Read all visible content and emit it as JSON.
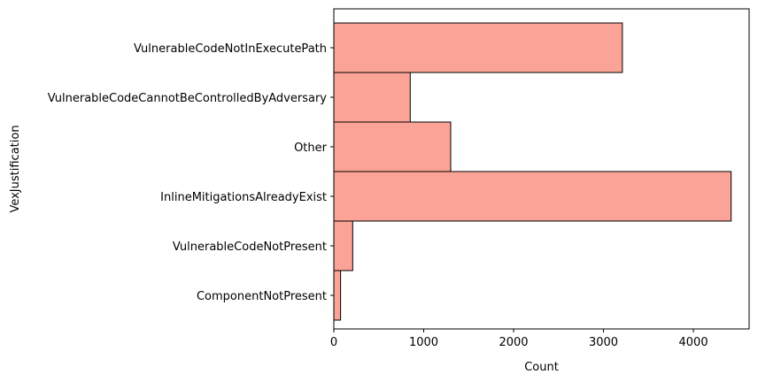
{
  "chart_data": {
    "type": "bar",
    "orientation": "horizontal",
    "categories": [
      "VulnerableCodeNotInExecutePath",
      "VulnerableCodeCannotBeControlledByAdversary",
      "Other",
      "InlineMitigationsAlreadyExist",
      "VulnerableCodeNotPresent",
      "ComponentNotPresent"
    ],
    "values": [
      3210,
      850,
      1300,
      4420,
      210,
      75
    ],
    "xlabel": "Count",
    "ylabel": "VexJustification",
    "xlim": [
      0,
      4620
    ],
    "xticks": [
      0,
      1000,
      2000,
      3000,
      4000
    ],
    "grid": false,
    "legend": "none",
    "colors": {
      "bar_fill": "#fba396",
      "bar_edge": "#000000",
      "axis": "#000000"
    }
  }
}
